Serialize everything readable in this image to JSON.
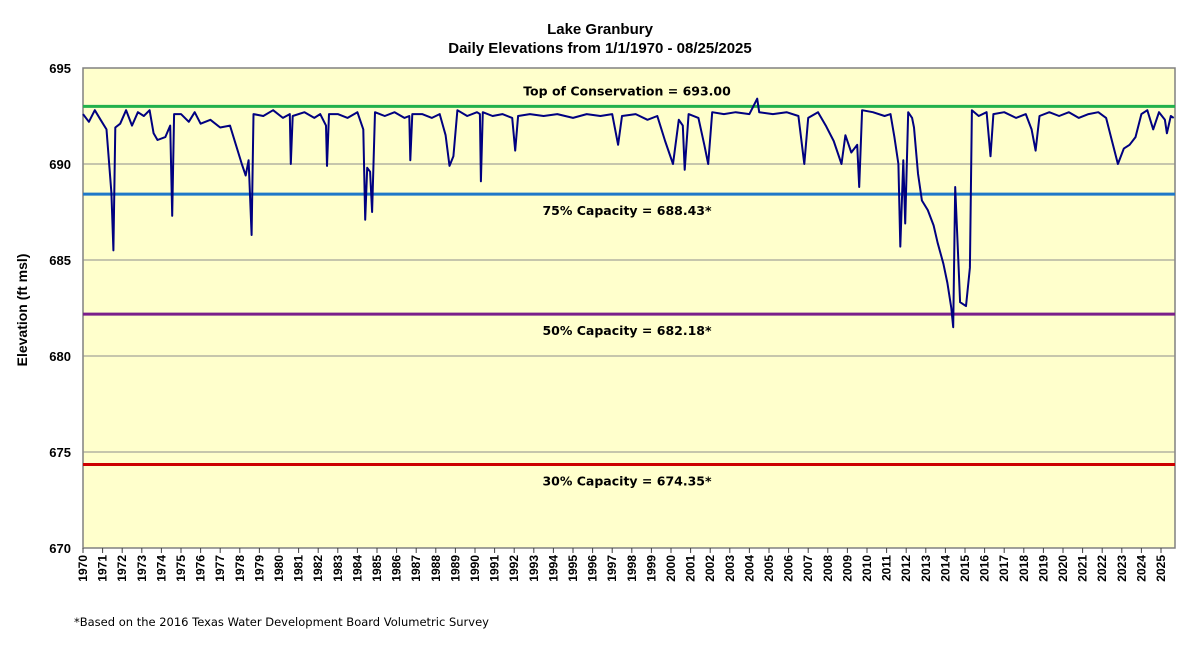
{
  "chart_data": {
    "type": "line",
    "title": "Lake Granbury",
    "subtitle": "Daily Elevations from 1/1/1970 - 08/25/2025",
    "xlabel": "",
    "ylabel": "Elevation (ft msl)",
    "xlim": [
      1970,
      2025.65
    ],
    "ylim": [
      670,
      695
    ],
    "yticks": [
      670,
      675,
      680,
      685,
      690,
      695
    ],
    "xticks": [
      1970,
      1971,
      1972,
      1973,
      1974,
      1975,
      1976,
      1977,
      1978,
      1979,
      1980,
      1981,
      1982,
      1983,
      1984,
      1985,
      1986,
      1987,
      1988,
      1989,
      1990,
      1991,
      1992,
      1993,
      1994,
      1995,
      1996,
      1997,
      1998,
      1999,
      2000,
      2001,
      2002,
      2003,
      2004,
      2005,
      2006,
      2007,
      2008,
      2009,
      2010,
      2011,
      2012,
      2013,
      2014,
      2015,
      2016,
      2017,
      2018,
      2019,
      2020,
      2021,
      2022,
      2023,
      2024,
      2025
    ],
    "grid": true,
    "background": "#ffffcc",
    "series": [
      {
        "color": "#000080",
        "points": [
          [
            1970.0,
            692.6
          ],
          [
            1970.3,
            692.2
          ],
          [
            1970.6,
            692.8
          ],
          [
            1970.9,
            692.3
          ],
          [
            1971.2,
            691.8
          ],
          [
            1971.45,
            688.5
          ],
          [
            1971.55,
            685.5
          ],
          [
            1971.65,
            691.9
          ],
          [
            1971.9,
            692.1
          ],
          [
            1972.2,
            692.8
          ],
          [
            1972.5,
            692.0
          ],
          [
            1972.8,
            692.7
          ],
          [
            1973.1,
            692.5
          ],
          [
            1973.4,
            692.8
          ],
          [
            1973.6,
            691.6
          ],
          [
            1973.8,
            691.25
          ],
          [
            1974.2,
            691.4
          ],
          [
            1974.45,
            692.0
          ],
          [
            1974.55,
            687.3
          ],
          [
            1974.65,
            692.6
          ],
          [
            1975.0,
            692.6
          ],
          [
            1975.4,
            692.2
          ],
          [
            1975.7,
            692.7
          ],
          [
            1976.0,
            692.1
          ],
          [
            1976.5,
            692.3
          ],
          [
            1977.0,
            691.9
          ],
          [
            1977.5,
            692.0
          ],
          [
            1977.8,
            691.0
          ],
          [
            1978.1,
            690.0
          ],
          [
            1978.3,
            689.4
          ],
          [
            1978.45,
            690.2
          ],
          [
            1978.6,
            686.3
          ],
          [
            1978.7,
            692.6
          ],
          [
            1979.2,
            692.5
          ],
          [
            1979.7,
            692.8
          ],
          [
            1980.2,
            692.4
          ],
          [
            1980.55,
            692.6
          ],
          [
            1980.6,
            690.0
          ],
          [
            1980.7,
            692.5
          ],
          [
            1981.3,
            692.7
          ],
          [
            1981.8,
            692.4
          ],
          [
            1982.1,
            692.6
          ],
          [
            1982.4,
            692.0
          ],
          [
            1982.45,
            689.9
          ],
          [
            1982.55,
            692.6
          ],
          [
            1983.0,
            692.6
          ],
          [
            1983.5,
            692.4
          ],
          [
            1984.0,
            692.7
          ],
          [
            1984.3,
            691.8
          ],
          [
            1984.4,
            687.1
          ],
          [
            1984.5,
            689.8
          ],
          [
            1984.65,
            689.6
          ],
          [
            1984.75,
            687.5
          ],
          [
            1984.9,
            692.7
          ],
          [
            1985.4,
            692.5
          ],
          [
            1985.9,
            692.7
          ],
          [
            1986.4,
            692.4
          ],
          [
            1986.65,
            692.5
          ],
          [
            1986.7,
            690.2
          ],
          [
            1986.8,
            692.6
          ],
          [
            1987.3,
            692.6
          ],
          [
            1987.8,
            692.4
          ],
          [
            1988.2,
            692.6
          ],
          [
            1988.5,
            691.5
          ],
          [
            1988.7,
            689.9
          ],
          [
            1988.9,
            690.4
          ],
          [
            1989.1,
            692.8
          ],
          [
            1989.6,
            692.5
          ],
          [
            1990.1,
            692.7
          ],
          [
            1990.25,
            692.6
          ],
          [
            1990.3,
            689.1
          ],
          [
            1990.4,
            692.7
          ],
          [
            1990.9,
            692.5
          ],
          [
            1991.4,
            692.6
          ],
          [
            1991.9,
            692.4
          ],
          [
            1992.05,
            690.7
          ],
          [
            1992.2,
            692.5
          ],
          [
            1992.8,
            692.6
          ],
          [
            1993.5,
            692.5
          ],
          [
            1994.2,
            692.6
          ],
          [
            1995.0,
            692.4
          ],
          [
            1995.7,
            692.6
          ],
          [
            1996.4,
            692.5
          ],
          [
            1997.0,
            692.6
          ],
          [
            1997.3,
            691.0
          ],
          [
            1997.5,
            692.5
          ],
          [
            1998.2,
            692.6
          ],
          [
            1998.8,
            692.3
          ],
          [
            1999.3,
            692.5
          ],
          [
            1999.7,
            691.2
          ],
          [
            2000.1,
            690.0
          ],
          [
            2000.4,
            692.3
          ],
          [
            2000.6,
            692.0
          ],
          [
            2000.7,
            689.7
          ],
          [
            2000.9,
            692.6
          ],
          [
            2001.4,
            692.4
          ],
          [
            2001.7,
            691.0
          ],
          [
            2001.9,
            690.0
          ],
          [
            2002.1,
            692.7
          ],
          [
            2002.7,
            692.6
          ],
          [
            2003.3,
            692.7
          ],
          [
            2004.0,
            692.6
          ],
          [
            2004.4,
            693.4
          ],
          [
            2004.5,
            692.7
          ],
          [
            2005.2,
            692.6
          ],
          [
            2005.9,
            692.7
          ],
          [
            2006.5,
            692.5
          ],
          [
            2006.8,
            690.0
          ],
          [
            2007.0,
            692.4
          ],
          [
            2007.5,
            692.7
          ],
          [
            2007.9,
            692.0
          ],
          [
            2008.3,
            691.2
          ],
          [
            2008.7,
            690.0
          ],
          [
            2008.9,
            691.5
          ],
          [
            2009.2,
            690.6
          ],
          [
            2009.5,
            691.0
          ],
          [
            2009.6,
            688.8
          ],
          [
            2009.75,
            692.8
          ],
          [
            2010.3,
            692.7
          ],
          [
            2010.9,
            692.5
          ],
          [
            2011.2,
            692.6
          ],
          [
            2011.4,
            691.4
          ],
          [
            2011.6,
            690.0
          ],
          [
            2011.7,
            685.7
          ],
          [
            2011.85,
            690.2
          ],
          [
            2011.95,
            686.9
          ],
          [
            2012.1,
            692.7
          ],
          [
            2012.3,
            692.4
          ],
          [
            2012.4,
            691.9
          ],
          [
            2012.6,
            689.5
          ],
          [
            2012.8,
            688.1
          ],
          [
            2013.1,
            687.6
          ],
          [
            2013.4,
            686.8
          ],
          [
            2013.6,
            685.9
          ],
          [
            2013.9,
            684.8
          ],
          [
            2014.1,
            683.8
          ],
          [
            2014.3,
            682.5
          ],
          [
            2014.4,
            681.5
          ],
          [
            2014.5,
            688.8
          ],
          [
            2014.75,
            682.8
          ],
          [
            2015.05,
            682.6
          ],
          [
            2015.25,
            684.6
          ],
          [
            2015.35,
            692.8
          ],
          [
            2015.7,
            692.5
          ],
          [
            2016.1,
            692.7
          ],
          [
            2016.3,
            690.4
          ],
          [
            2016.45,
            692.6
          ],
          [
            2017.0,
            692.7
          ],
          [
            2017.6,
            692.4
          ],
          [
            2018.1,
            692.6
          ],
          [
            2018.4,
            691.8
          ],
          [
            2018.6,
            690.7
          ],
          [
            2018.8,
            692.5
          ],
          [
            2019.3,
            692.7
          ],
          [
            2019.8,
            692.5
          ],
          [
            2020.3,
            692.7
          ],
          [
            2020.8,
            692.4
          ],
          [
            2021.3,
            692.6
          ],
          [
            2021.8,
            692.7
          ],
          [
            2022.2,
            692.4
          ],
          [
            2022.5,
            691.2
          ],
          [
            2022.8,
            690.0
          ],
          [
            2023.1,
            690.8
          ],
          [
            2023.4,
            691.0
          ],
          [
            2023.7,
            691.4
          ],
          [
            2024.0,
            692.6
          ],
          [
            2024.3,
            692.8
          ],
          [
            2024.6,
            691.8
          ],
          [
            2024.9,
            692.7
          ],
          [
            2025.2,
            692.3
          ],
          [
            2025.3,
            691.6
          ],
          [
            2025.5,
            692.5
          ],
          [
            2025.65,
            692.4
          ]
        ]
      }
    ],
    "reference_lines": [
      {
        "value": 693.0,
        "label": "Top of Conservation = 693.00",
        "color": "#22b14c"
      },
      {
        "value": 688.43,
        "label": "75% Capacity = 688.43*",
        "color": "#1f78c8"
      },
      {
        "value": 682.18,
        "label": "50% Capacity = 682.18*",
        "color": "#7a1f8a"
      },
      {
        "value": 674.35,
        "label": "30% Capacity = 674.35*",
        "color": "#cc0000"
      }
    ]
  },
  "footnote": "*Based on the 2016 Texas Water Development Board Volumetric Survey"
}
